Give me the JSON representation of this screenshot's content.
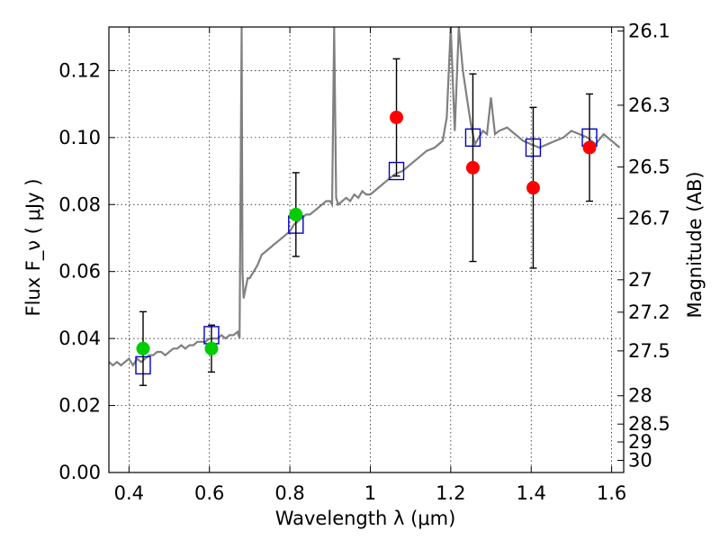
{
  "chart_data": {
    "type": "scatter",
    "title": "",
    "xlabel": "Wavelength  λ (μm)",
    "ylabel_left": "Flux  F_ν  ( μJy )",
    "ylabel_right": "Magnitude (AB)",
    "xlim": [
      0.35,
      1.63
    ],
    "ylim": [
      0.0,
      0.133
    ],
    "grid": true,
    "x_ticks": [
      0.4,
      0.6,
      0.8,
      1.0,
      1.2,
      1.4,
      1.6
    ],
    "x_tick_labels": [
      "0.4",
      "0.6",
      "0.8",
      "1",
      "1.2",
      "1.4",
      "1.6"
    ],
    "y_ticks": [
      0.0,
      0.02,
      0.04,
      0.06,
      0.08,
      0.1,
      0.12
    ],
    "y_tick_labels": [
      "0.00",
      "0.02",
      "0.04",
      "0.06",
      "0.08",
      "0.10",
      "0.12"
    ],
    "right_mag_ticks": [
      26.1,
      26.3,
      26.5,
      26.7,
      27,
      27.2,
      27.5,
      28,
      28.5,
      29,
      30
    ],
    "right_mag_labels": [
      "26.1",
      "26.3",
      "26.5",
      "26.7",
      "27",
      "27.2",
      "27.5",
      "28",
      "28.5",
      "29",
      "30"
    ],
    "colors": {
      "sed": "#808080",
      "model_box": "#0000cc",
      "hst_point": "#00cc00",
      "nir_point": "#ff0000",
      "error_bar": "#000000",
      "grid": "#000000"
    },
    "series": [
      {
        "name": "sed_template",
        "kind": "line",
        "x": [
          0.35,
          0.36,
          0.37,
          0.38,
          0.39,
          0.4,
          0.41,
          0.42,
          0.43,
          0.44,
          0.45,
          0.46,
          0.47,
          0.48,
          0.49,
          0.5,
          0.51,
          0.52,
          0.53,
          0.54,
          0.55,
          0.56,
          0.57,
          0.58,
          0.59,
          0.6,
          0.61,
          0.62,
          0.63,
          0.64,
          0.65,
          0.66,
          0.67,
          0.675,
          0.68,
          0.682,
          0.685,
          0.69,
          0.695,
          0.7,
          0.71,
          0.72,
          0.73,
          0.74,
          0.75,
          0.76,
          0.77,
          0.78,
          0.79,
          0.8,
          0.81,
          0.82,
          0.83,
          0.84,
          0.85,
          0.86,
          0.87,
          0.88,
          0.89,
          0.9,
          0.905,
          0.91,
          0.915,
          0.92,
          0.93,
          0.94,
          0.95,
          0.96,
          0.97,
          0.98,
          0.99,
          1.0,
          1.02,
          1.04,
          1.06,
          1.08,
          1.1,
          1.12,
          1.14,
          1.16,
          1.18,
          1.19,
          1.2,
          1.21,
          1.22,
          1.23,
          1.24,
          1.25,
          1.26,
          1.27,
          1.28,
          1.29,
          1.3,
          1.31,
          1.32,
          1.34,
          1.36,
          1.38,
          1.4,
          1.42,
          1.44,
          1.46,
          1.48,
          1.5,
          1.52,
          1.54,
          1.56,
          1.58,
          1.6,
          1.62
        ],
        "y": [
          0.033,
          0.032,
          0.033,
          0.032,
          0.033,
          0.034,
          0.032,
          0.034,
          0.033,
          0.034,
          0.035,
          0.035,
          0.036,
          0.036,
          0.035,
          0.036,
          0.037,
          0.037,
          0.038,
          0.037,
          0.038,
          0.038,
          0.039,
          0.039,
          0.039,
          0.04,
          0.04,
          0.04,
          0.041,
          0.04,
          0.041,
          0.041,
          0.042,
          0.04,
          0.133,
          0.06,
          0.052,
          0.055,
          0.058,
          0.058,
          0.06,
          0.062,
          0.065,
          0.066,
          0.067,
          0.068,
          0.069,
          0.07,
          0.071,
          0.072,
          0.074,
          0.075,
          0.076,
          0.077,
          0.077,
          0.078,
          0.079,
          0.08,
          0.081,
          0.081,
          0.08,
          0.133,
          0.082,
          0.08,
          0.081,
          0.082,
          0.081,
          0.083,
          0.082,
          0.084,
          0.083,
          0.083,
          0.085,
          0.087,
          0.089,
          0.09,
          0.092,
          0.094,
          0.096,
          0.097,
          0.099,
          0.106,
          0.133,
          0.102,
          0.133,
          0.12,
          0.112,
          0.104,
          0.098,
          0.1,
          0.102,
          0.101,
          0.112,
          0.101,
          0.102,
          0.103,
          0.101,
          0.099,
          0.098,
          0.097,
          0.098,
          0.099,
          0.1,
          0.102,
          0.101,
          0.1,
          0.098,
          0.101,
          0.099,
          0.097
        ]
      },
      {
        "name": "model_photometry",
        "kind": "box",
        "x": [
          0.435,
          0.605,
          0.815,
          1.065,
          1.255,
          1.405,
          1.545
        ],
        "y": [
          0.032,
          0.041,
          0.074,
          0.09,
          0.1,
          0.097,
          0.1
        ]
      },
      {
        "name": "observed_optical",
        "kind": "point",
        "x": [
          0.435,
          0.605,
          0.815
        ],
        "y": [
          0.037,
          0.037,
          0.077
        ],
        "yerr": [
          0.011,
          0.007,
          0.0125
        ]
      },
      {
        "name": "observed_nir",
        "kind": "point",
        "x": [
          1.065,
          1.255,
          1.405,
          1.545
        ],
        "y": [
          0.106,
          0.091,
          0.085,
          0.097
        ],
        "yerr": [
          0.0175,
          0.028,
          0.024,
          0.016
        ]
      }
    ]
  }
}
